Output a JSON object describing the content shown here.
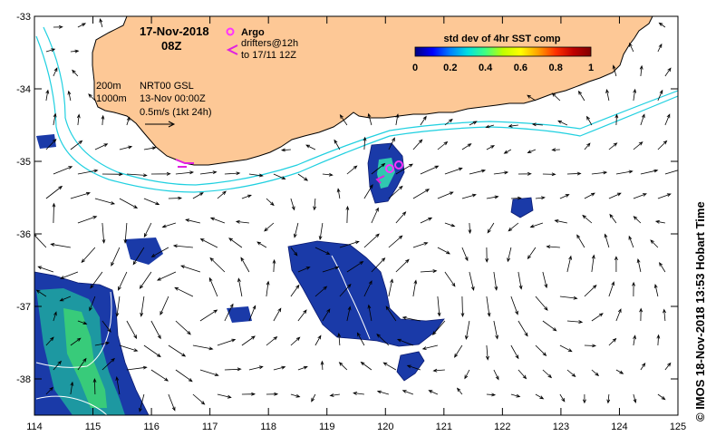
{
  "header": {
    "date": "17-Nov-2018",
    "hour": "08Z"
  },
  "legend": {
    "argo_label": "Argo",
    "drifters_label_1": "drifters@12h",
    "drifters_label_2": "to 17/11 12Z",
    "argo_color": "#ff33ff",
    "drifter_color": "#e020e0"
  },
  "info": {
    "depth_200": "200m",
    "depth_1000": "1000m",
    "product": "NRT00 GSL",
    "product_time": "13-Nov 00:00Z",
    "vector_scale": "0.5m/s (1kt 24h)"
  },
  "colorbar": {
    "title": "std dev of 4hr SST comp",
    "ticks": [
      "0",
      "0.2",
      "0.4",
      "0.6",
      "0.8",
      "1"
    ],
    "colors": [
      "#000080",
      "#0000ff",
      "#0080ff",
      "#00e0e0",
      "#40ff80",
      "#c0ff00",
      "#ffff00",
      "#ffa000",
      "#ff3000",
      "#c00000",
      "#800000"
    ]
  },
  "axes": {
    "x_ticks": [
      "114",
      "115",
      "116",
      "117",
      "118",
      "119",
      "120",
      "121",
      "122",
      "123",
      "124",
      "125"
    ],
    "y_ticks": [
      "-33",
      "-34",
      "-35",
      "-36",
      "-37",
      "-38"
    ],
    "lon_range": [
      114,
      125
    ],
    "lat_range": [
      -38.5,
      -33
    ]
  },
  "credit": "© IMOS 18-Nov-2018 13:53 Hobart Time",
  "colors": {
    "land": "#fdc896",
    "isobath": "#20d0e0",
    "vector": "#000000"
  }
}
